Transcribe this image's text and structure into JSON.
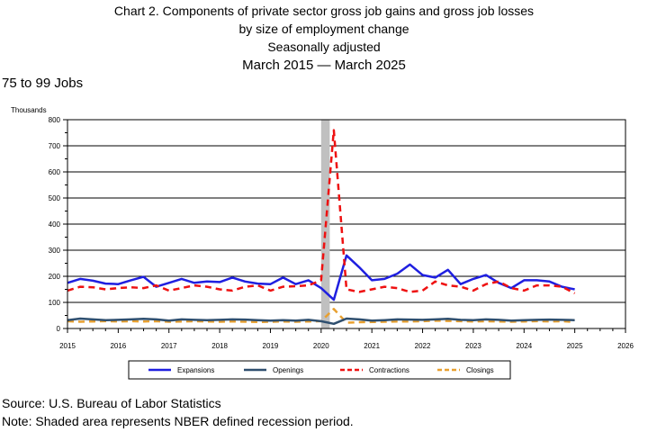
{
  "header": {
    "title_line1": "Chart 2. Components of private sector gross job gains and gross job losses",
    "title_line2": "by size of employment change",
    "title_line3": "Seasonally adjusted",
    "title_line4": "March 2015 — March 2025",
    "subtitle": "75 to 99 Jobs"
  },
  "footer": {
    "source": "Source: U.S. Bureau of Labor Statistics",
    "note": "Note: Shaded area represents NBER defined recession period."
  },
  "chart_data": {
    "type": "line",
    "ylabel": "Thousands",
    "ylim": [
      0,
      800
    ],
    "yticks": [
      0,
      100,
      200,
      300,
      400,
      500,
      600,
      700,
      800
    ],
    "xlim": [
      2015,
      2026
    ],
    "xticks": [
      "2015",
      "2016",
      "2017",
      "2018",
      "2019",
      "2020",
      "2021",
      "2022",
      "2023",
      "2024",
      "2025",
      "2026"
    ],
    "grid": "horizontal",
    "legend_position": "bottom",
    "recession": {
      "start": 2020.0,
      "end": 2020.17
    },
    "x": [
      2015.0,
      2015.25,
      2015.5,
      2015.75,
      2016.0,
      2016.25,
      2016.5,
      2016.75,
      2017.0,
      2017.25,
      2017.5,
      2017.75,
      2018.0,
      2018.25,
      2018.5,
      2018.75,
      2019.0,
      2019.25,
      2019.5,
      2019.75,
      2020.0,
      2020.25,
      2020.5,
      2020.75,
      2021.0,
      2021.25,
      2021.5,
      2021.75,
      2022.0,
      2022.25,
      2022.5,
      2022.75,
      2023.0,
      2023.25,
      2023.5,
      2023.75,
      2024.0,
      2024.25,
      2024.5,
      2024.75,
      2025.0
    ],
    "series": [
      {
        "name": "Expansions",
        "color": "#1f1fe0",
        "dash": "solid",
        "values": [
          175,
          190,
          183,
          172,
          170,
          185,
          198,
          160,
          175,
          190,
          175,
          180,
          178,
          195,
          180,
          172,
          170,
          195,
          170,
          185,
          155,
          110,
          280,
          235,
          185,
          190,
          210,
          245,
          205,
          195,
          225,
          170,
          190,
          205,
          175,
          155,
          185,
          185,
          180,
          160,
          150
        ]
      },
      {
        "name": "Openings",
        "color": "#2f4f6f",
        "dash": "solid",
        "values": [
          32,
          38,
          35,
          32,
          33,
          35,
          37,
          35,
          30,
          35,
          33,
          32,
          33,
          35,
          34,
          32,
          30,
          32,
          30,
          33,
          28,
          18,
          38,
          35,
          30,
          32,
          35,
          34,
          33,
          35,
          37,
          33,
          32,
          35,
          33,
          30,
          32,
          33,
          34,
          33,
          32
        ]
      },
      {
        "name": "Contractions",
        "color": "#ee1111",
        "dash": "dashed",
        "values": [
          145,
          160,
          158,
          150,
          155,
          158,
          155,
          165,
          145,
          155,
          165,
          160,
          150,
          145,
          160,
          165,
          145,
          160,
          162,
          165,
          185,
          760,
          150,
          140,
          150,
          160,
          155,
          140,
          145,
          180,
          165,
          160,
          145,
          170,
          180,
          155,
          145,
          165,
          165,
          160,
          135
        ]
      },
      {
        "name": "Closings",
        "color": "#e8a030",
        "dash": "dashed",
        "values": [
          28,
          26,
          27,
          28,
          27,
          28,
          27,
          28,
          26,
          27,
          28,
          27,
          26,
          27,
          26,
          25,
          26,
          27,
          26,
          27,
          28,
          75,
          22,
          24,
          25,
          26,
          27,
          27,
          28,
          30,
          29,
          28,
          27,
          28,
          27,
          26,
          27,
          28,
          27,
          28,
          25
        ]
      }
    ]
  }
}
